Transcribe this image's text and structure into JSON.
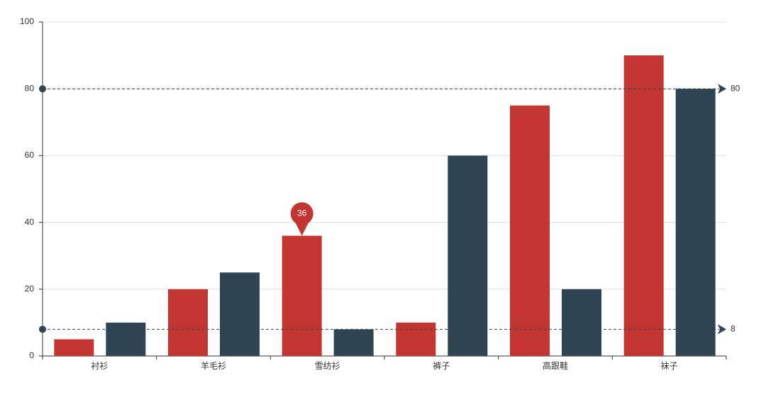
{
  "chart_data": {
    "type": "bar",
    "categories": [
      "衬衫",
      "羊毛衫",
      "雪纺衫",
      "裤子",
      "高跟鞋",
      "袜子"
    ],
    "series": [
      {
        "color": "#c23531",
        "values": [
          5,
          20,
          36,
          10,
          75,
          90
        ]
      },
      {
        "color": "#2f4554",
        "values": [
          10,
          25,
          8,
          60,
          20,
          80
        ]
      }
    ],
    "ylim": [
      0,
      100
    ],
    "yticks": [
      0,
      20,
      40,
      60,
      80,
      100
    ],
    "grid": true,
    "mark_point": {
      "value": 36
    },
    "mark_lines": [
      80,
      8
    ]
  }
}
